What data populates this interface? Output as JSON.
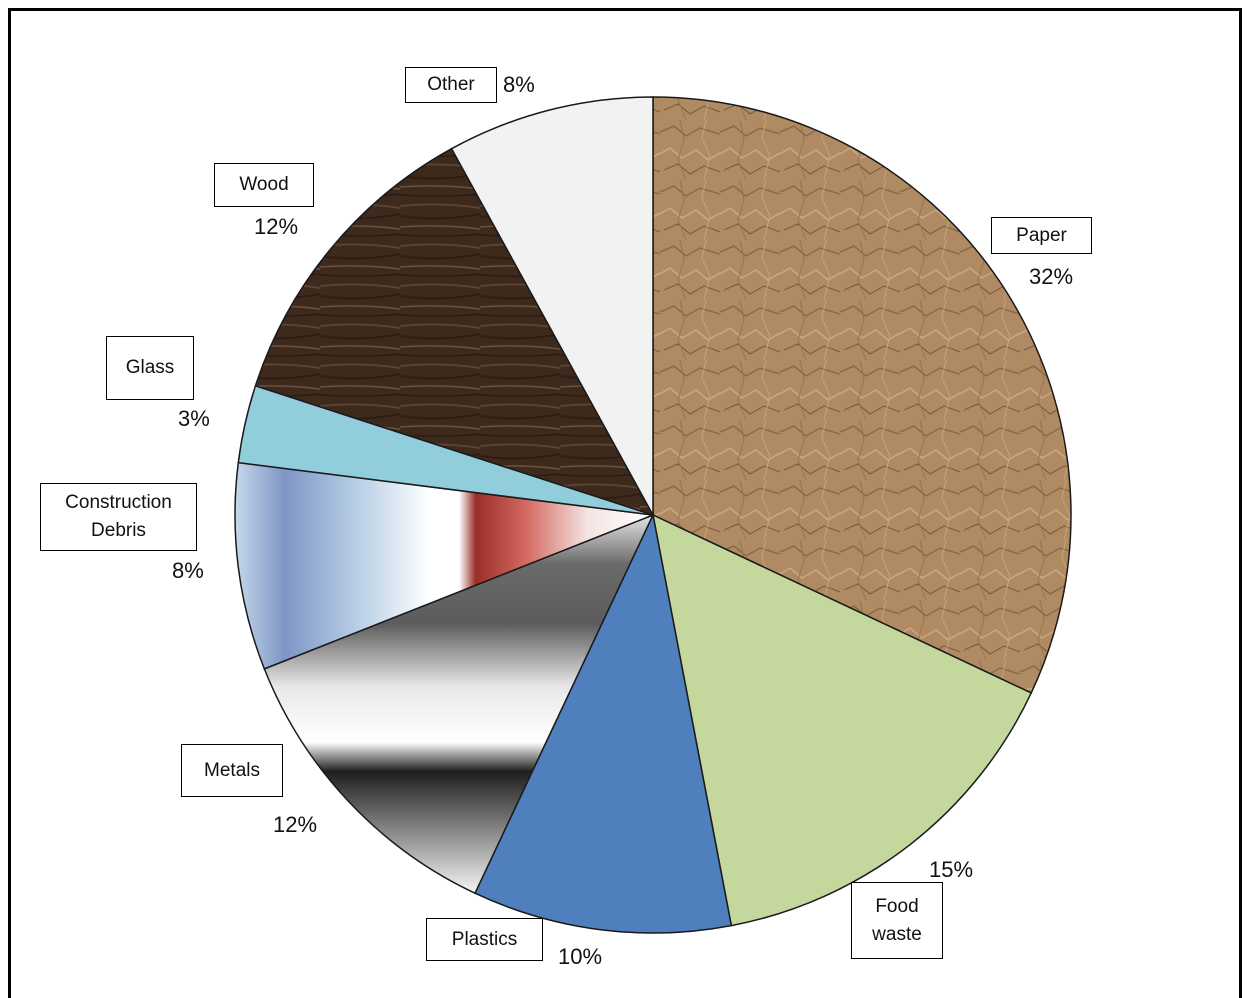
{
  "chart_data": {
    "type": "pie",
    "start_angle_deg": 0,
    "direction": "clockwise",
    "slices": [
      {
        "label": "Paper",
        "value": 32,
        "pct_label": "32%",
        "color": "#b08a63",
        "fill": "paper"
      },
      {
        "label": "Food\nwaste",
        "value": 15,
        "pct_label": "15%",
        "color": "#c4d89e",
        "fill": "solid"
      },
      {
        "label": "Plastics",
        "value": 10,
        "pct_label": "10%",
        "color": "#4f80bd",
        "fill": "solid"
      },
      {
        "label": "Metals",
        "value": 12,
        "pct_label": "12%",
        "color": "#8c8c8c",
        "fill": "metal"
      },
      {
        "label": "Construction\nDebris",
        "value": 8,
        "pct_label": "8%",
        "color": "#9fbcd8",
        "fill": "construction"
      },
      {
        "label": "Glass",
        "value": 3,
        "pct_label": "3%",
        "color": "#92cddc",
        "fill": "solid"
      },
      {
        "label": "Wood",
        "value": 12,
        "pct_label": "12%",
        "color": "#3b2b1f",
        "fill": "wood"
      },
      {
        "label": "Other",
        "value": 8,
        "pct_label": "8%",
        "color": "#f2f2f2",
        "fill": "solid"
      }
    ]
  }
}
